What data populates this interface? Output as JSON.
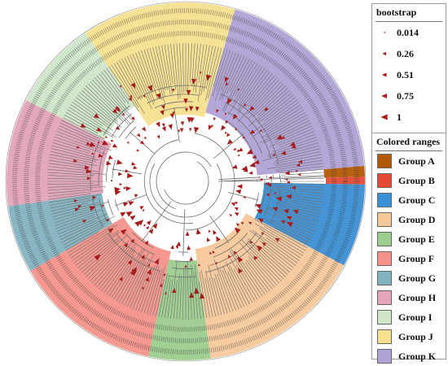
{
  "figure": {
    "groups": [
      {
        "key": "A",
        "color": "#b35806"
      },
      {
        "key": "B",
        "color": "#e34a33"
      },
      {
        "key": "C",
        "color": "#3b8fd4"
      },
      {
        "key": "D",
        "color": "#f5c89a"
      },
      {
        "key": "E",
        "color": "#9ccc8e"
      },
      {
        "key": "F",
        "color": "#f4928a"
      },
      {
        "key": "G",
        "color": "#82b2c0"
      },
      {
        "key": "H",
        "color": "#e3a3b8"
      },
      {
        "key": "I",
        "color": "#cfe6c9"
      },
      {
        "key": "J",
        "color": "#f6e08e"
      },
      {
        "key": "K",
        "color": "#b0a2d6"
      }
    ],
    "branch_color": "#6e6e6e",
    "node_color": "#a61b1b"
  },
  "legend": {
    "bootstrap": {
      "title": "bootstrap",
      "items": [
        "0.014",
        "0.26",
        "0.51",
        "0.75",
        "1"
      ]
    },
    "ranges": {
      "title": "Colored ranges",
      "items": [
        {
          "label": "Group A",
          "color": "#b35806"
        },
        {
          "label": "Group B",
          "color": "#e34a33"
        },
        {
          "label": "Group C",
          "color": "#3b8fd4"
        },
        {
          "label": "Group D",
          "color": "#f5c89a"
        },
        {
          "label": "Group E",
          "color": "#9ccc8e"
        },
        {
          "label": "Group F",
          "color": "#f4928a"
        },
        {
          "label": "Group G",
          "color": "#82b2c0"
        },
        {
          "label": "Group H",
          "color": "#e3a3b8"
        },
        {
          "label": "Group I",
          "color": "#cfe6c9"
        },
        {
          "label": "Group J",
          "color": "#f6e08e"
        },
        {
          "label": "Group K",
          "color": "#b0a2d6"
        }
      ]
    }
  }
}
